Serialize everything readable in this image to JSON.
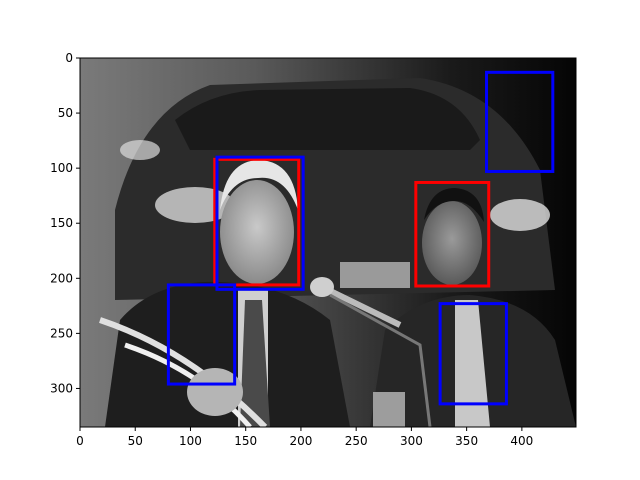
{
  "chart_data": {
    "type": "image-with-boxes",
    "title": "",
    "xlabel": "",
    "ylabel": "",
    "xlim": [
      0,
      449
    ],
    "ylim": [
      335,
      0
    ],
    "x_ticks": [
      0,
      50,
      100,
      150,
      200,
      250,
      300,
      350,
      400
    ],
    "y_ticks": [
      0,
      50,
      100,
      150,
      200,
      250,
      300
    ],
    "grid": false,
    "image": {
      "description_icon": "photo-grayscale",
      "colormap": "gray"
    },
    "box_series": [
      {
        "color": "#ff0000",
        "boxes": [
          {
            "x0": 122,
            "y0": 92,
            "x1": 198,
            "y1": 206
          },
          {
            "x0": 304,
            "y0": 113,
            "x1": 370,
            "y1": 207
          }
        ]
      },
      {
        "color": "#0000ff",
        "boxes": [
          {
            "x0": 124,
            "y0": 90,
            "x1": 202,
            "y1": 210
          },
          {
            "x0": 368,
            "y0": 13,
            "x1": 428,
            "y1": 103
          },
          {
            "x0": 80,
            "y0": 206,
            "x1": 140,
            "y1": 296
          },
          {
            "x0": 326,
            "y0": 223,
            "x1": 386,
            "y1": 314
          }
        ]
      }
    ]
  }
}
